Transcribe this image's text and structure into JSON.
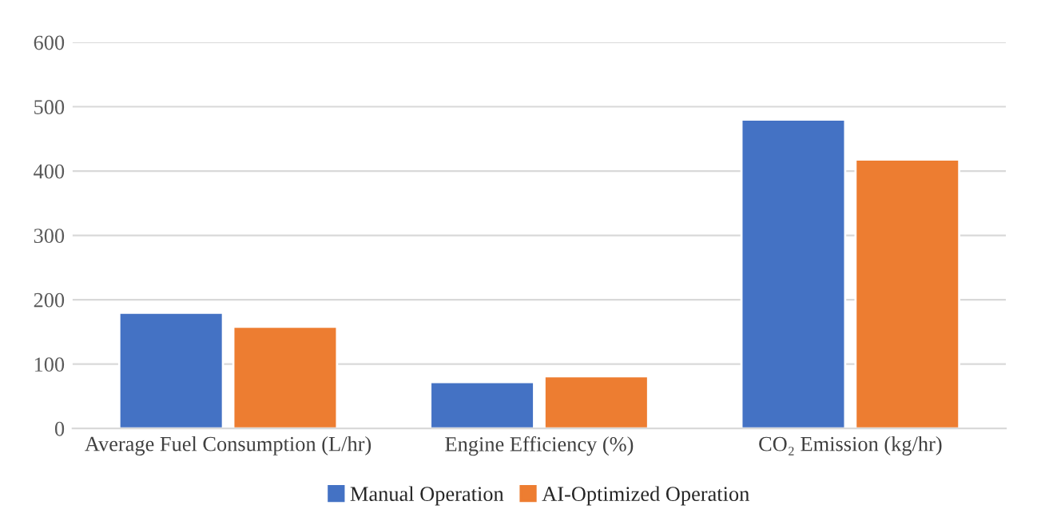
{
  "chart_data": {
    "type": "bar",
    "categories": [
      "Average Fuel Consumption (L/hr)",
      "Engine Efficiency (%)",
      "CO₂ Emission (kg/hr)"
    ],
    "series": [
      {
        "name": "Manual Operation",
        "color": "#4472c4",
        "values": [
          180,
          72,
          480
        ]
      },
      {
        "name": "AI-Optimized Operation",
        "color": "#ed7d31",
        "values": [
          158,
          81,
          418
        ]
      }
    ],
    "ylim": [
      0,
      600
    ],
    "yticks": [
      0,
      100,
      200,
      300,
      400,
      500,
      600
    ],
    "grid": "y",
    "legend": "bottom"
  }
}
